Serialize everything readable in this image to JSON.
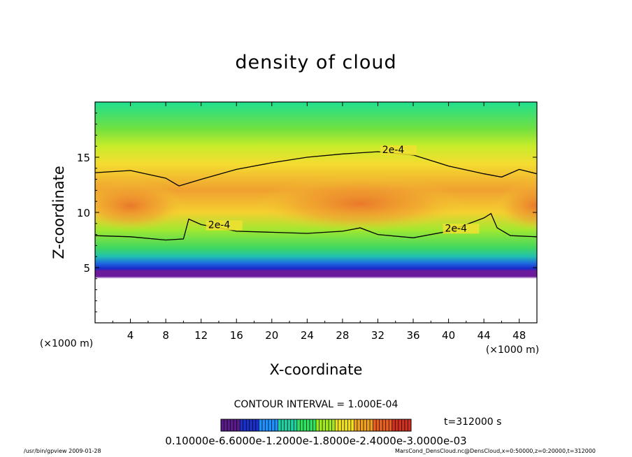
{
  "chart_data": {
    "type": "heatmap",
    "title": "density of cloud",
    "xlabel": "X-coordinate",
    "ylabel": "Z-coordinate",
    "x_unit": "(×1000 m)",
    "y_unit": "(×1000 m)",
    "xlim": [
      0,
      50
    ],
    "ylim": [
      0,
      20
    ],
    "x_ticks": [
      4,
      8,
      12,
      16,
      20,
      24,
      28,
      32,
      36,
      40,
      44,
      48
    ],
    "y_ticks": [
      5,
      10,
      15
    ],
    "grid": false,
    "contour_interval_text": "CONTOUR INTERVAL = 1.000E-04",
    "contour_label": "2e-4",
    "time_text": "t=312000 s",
    "colorbar_labels_text": "0.10000e-6.6000e-1.2000e-1.8000e-2.4000e-3.0000e-03",
    "colorbar_colors": [
      "#5a1a8a",
      "#1a30c8",
      "#1e90ff",
      "#20d0a0",
      "#30e060",
      "#a0e820",
      "#f0e020",
      "#f0a020",
      "#e86020",
      "#d03020"
    ],
    "upper_contour": [
      [
        0,
        13.6
      ],
      [
        4,
        13.8
      ],
      [
        8,
        13.1
      ],
      [
        9.5,
        12.4
      ],
      [
        12,
        13.0
      ],
      [
        16,
        13.9
      ],
      [
        20,
        14.5
      ],
      [
        24,
        15.0
      ],
      [
        28,
        15.3
      ],
      [
        32,
        15.5
      ],
      [
        36,
        15.2
      ],
      [
        40,
        14.2
      ],
      [
        44,
        13.5
      ],
      [
        46,
        13.2
      ],
      [
        48,
        13.9
      ],
      [
        50,
        13.5
      ]
    ],
    "lower_contour": [
      [
        0,
        7.9
      ],
      [
        4,
        7.8
      ],
      [
        8,
        7.5
      ],
      [
        10,
        7.6
      ],
      [
        10.6,
        9.4
      ],
      [
        12,
        8.9
      ],
      [
        16,
        8.3
      ],
      [
        20,
        8.2
      ],
      [
        24,
        8.1
      ],
      [
        28,
        8.3
      ],
      [
        30,
        8.6
      ],
      [
        32,
        8.0
      ],
      [
        36,
        7.7
      ],
      [
        40,
        8.3
      ],
      [
        44,
        9.5
      ],
      [
        44.8,
        9.9
      ],
      [
        45.5,
        8.6
      ],
      [
        47,
        7.9
      ],
      [
        50,
        7.8
      ]
    ]
  },
  "footer": {
    "left": "/usr/bin/gpview  2009-01-28",
    "right": "MarsCond_DensCloud.nc@DensCloud,x=0:50000,z=0:20000,t=312000"
  }
}
